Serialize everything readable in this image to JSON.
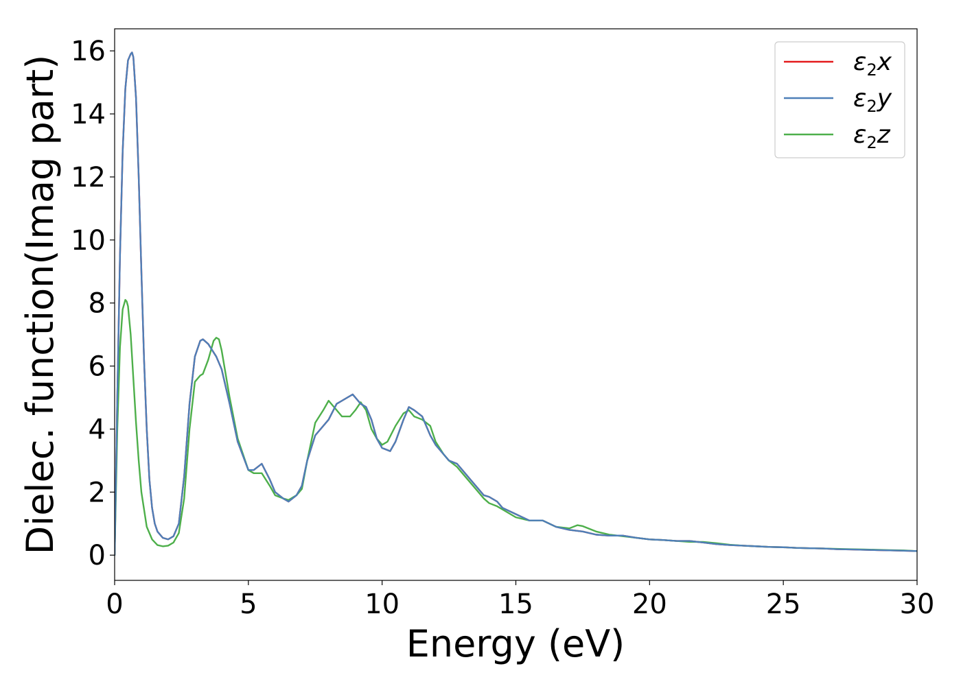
{
  "chart_data": {
    "type": "line",
    "title": "",
    "xlabel": "Energy (eV)",
    "ylabel": "Dielec. function(Imag part)",
    "xlim": [
      0,
      30
    ],
    "ylim": [
      -0.8,
      16.7
    ],
    "xticks": [
      0,
      5,
      10,
      15,
      20,
      25,
      30
    ],
    "yticks": [
      0,
      2,
      4,
      6,
      8,
      10,
      12,
      14,
      16
    ],
    "grid": false,
    "legend_position": "top-right",
    "series": [
      {
        "name": "ε2x",
        "legend_base": "ε",
        "legend_sub": "2",
        "legend_suffix": "x",
        "color": "#e41a1c",
        "x": [
          0,
          0.1,
          0.2,
          0.3,
          0.4,
          0.5,
          0.6,
          0.65,
          0.7,
          0.8,
          0.9,
          1.0,
          1.1,
          1.2,
          1.3,
          1.4,
          1.5,
          1.6,
          1.8,
          2.0,
          2.2,
          2.4,
          2.6,
          2.8,
          3.0,
          3.2,
          3.3,
          3.5,
          3.8,
          4.0,
          4.3,
          4.6,
          5.0,
          5.2,
          5.5,
          5.8,
          6.0,
          6.3,
          6.5,
          6.8,
          7.0,
          7.2,
          7.5,
          7.8,
          8.0,
          8.3,
          8.5,
          8.8,
          8.9,
          9.0,
          9.2,
          9.4,
          9.6,
          9.8,
          10.0,
          10.3,
          10.5,
          10.8,
          11.0,
          11.2,
          11.5,
          11.8,
          12.0,
          12.3,
          12.5,
          12.8,
          13.0,
          13.3,
          13.5,
          13.8,
          14.0,
          14.3,
          14.5,
          15.0,
          15.5,
          16.0,
          16.5,
          17.0,
          17.5,
          18.0,
          18.5,
          19.0,
          19.5,
          20.0,
          20.5,
          21.0,
          21.5,
          22.0,
          22.5,
          23.0,
          23.5,
          24.0,
          24.5,
          25.0,
          25.5,
          26.0,
          26.5,
          27.0,
          27.5,
          28.0,
          28.5,
          29.0,
          29.5,
          30.0
        ],
        "y": [
          0,
          5.0,
          9.5,
          12.8,
          14.8,
          15.7,
          15.9,
          15.95,
          15.8,
          14.5,
          12.0,
          9.0,
          6.2,
          4.0,
          2.4,
          1.5,
          1.0,
          0.75,
          0.55,
          0.5,
          0.6,
          1.0,
          2.5,
          4.8,
          6.3,
          6.8,
          6.85,
          6.7,
          6.3,
          5.9,
          4.8,
          3.6,
          2.7,
          2.7,
          2.9,
          2.4,
          2.0,
          1.8,
          1.7,
          1.9,
          2.2,
          3.0,
          3.8,
          4.1,
          4.3,
          4.8,
          4.9,
          5.05,
          5.1,
          5.0,
          4.8,
          4.7,
          4.3,
          3.7,
          3.4,
          3.3,
          3.6,
          4.3,
          4.7,
          4.6,
          4.4,
          3.8,
          3.5,
          3.2,
          3.0,
          2.9,
          2.7,
          2.4,
          2.2,
          1.9,
          1.85,
          1.7,
          1.5,
          1.3,
          1.1,
          1.1,
          0.9,
          0.8,
          0.75,
          0.65,
          0.62,
          0.62,
          0.55,
          0.5,
          0.48,
          0.45,
          0.45,
          0.4,
          0.35,
          0.32,
          0.3,
          0.28,
          0.26,
          0.25,
          0.23,
          0.22,
          0.21,
          0.19,
          0.18,
          0.17,
          0.16,
          0.15,
          0.14,
          0.13
        ]
      },
      {
        "name": "ε2y",
        "legend_base": "ε",
        "legend_sub": "2",
        "legend_suffix": "y",
        "color": "#4d7fb8",
        "x": [
          0,
          0.1,
          0.2,
          0.3,
          0.4,
          0.5,
          0.6,
          0.65,
          0.7,
          0.8,
          0.9,
          1.0,
          1.1,
          1.2,
          1.3,
          1.4,
          1.5,
          1.6,
          1.8,
          2.0,
          2.2,
          2.4,
          2.6,
          2.8,
          3.0,
          3.2,
          3.3,
          3.5,
          3.8,
          4.0,
          4.3,
          4.6,
          5.0,
          5.2,
          5.5,
          5.8,
          6.0,
          6.3,
          6.5,
          6.8,
          7.0,
          7.2,
          7.5,
          7.8,
          8.0,
          8.3,
          8.5,
          8.8,
          8.9,
          9.0,
          9.2,
          9.4,
          9.6,
          9.8,
          10.0,
          10.3,
          10.5,
          10.8,
          11.0,
          11.2,
          11.5,
          11.8,
          12.0,
          12.3,
          12.5,
          12.8,
          13.0,
          13.3,
          13.5,
          13.8,
          14.0,
          14.3,
          14.5,
          15.0,
          15.5,
          16.0,
          16.5,
          17.0,
          17.5,
          18.0,
          18.5,
          19.0,
          19.5,
          20.0,
          20.5,
          21.0,
          21.5,
          22.0,
          22.5,
          23.0,
          23.5,
          24.0,
          24.5,
          25.0,
          25.5,
          26.0,
          26.5,
          27.0,
          27.5,
          28.0,
          28.5,
          29.0,
          29.5,
          30.0
        ],
        "y": [
          0,
          5.0,
          9.5,
          12.8,
          14.8,
          15.7,
          15.9,
          15.95,
          15.8,
          14.5,
          12.0,
          9.0,
          6.2,
          4.0,
          2.4,
          1.5,
          1.0,
          0.75,
          0.55,
          0.5,
          0.6,
          1.0,
          2.5,
          4.8,
          6.3,
          6.8,
          6.85,
          6.7,
          6.3,
          5.9,
          4.8,
          3.6,
          2.7,
          2.7,
          2.9,
          2.4,
          2.0,
          1.8,
          1.7,
          1.9,
          2.2,
          3.0,
          3.8,
          4.1,
          4.3,
          4.8,
          4.9,
          5.05,
          5.1,
          5.0,
          4.8,
          4.7,
          4.3,
          3.7,
          3.4,
          3.3,
          3.6,
          4.3,
          4.7,
          4.6,
          4.4,
          3.8,
          3.5,
          3.2,
          3.0,
          2.9,
          2.7,
          2.4,
          2.2,
          1.9,
          1.85,
          1.7,
          1.5,
          1.3,
          1.1,
          1.1,
          0.9,
          0.8,
          0.75,
          0.65,
          0.62,
          0.62,
          0.55,
          0.5,
          0.48,
          0.45,
          0.45,
          0.4,
          0.35,
          0.32,
          0.3,
          0.28,
          0.26,
          0.25,
          0.23,
          0.22,
          0.21,
          0.19,
          0.18,
          0.17,
          0.16,
          0.15,
          0.14,
          0.13
        ]
      },
      {
        "name": "ε2z",
        "legend_base": "ε",
        "legend_sub": "2",
        "legend_suffix": "z",
        "color": "#4daf4a",
        "x": [
          0,
          0.1,
          0.2,
          0.3,
          0.4,
          0.45,
          0.5,
          0.6,
          0.7,
          0.8,
          0.9,
          1.0,
          1.2,
          1.4,
          1.6,
          1.8,
          2.0,
          2.2,
          2.4,
          2.6,
          2.8,
          3.0,
          3.2,
          3.3,
          3.5,
          3.7,
          3.8,
          3.9,
          4.0,
          4.3,
          4.6,
          5.0,
          5.2,
          5.5,
          5.8,
          6.0,
          6.3,
          6.5,
          6.8,
          7.0,
          7.2,
          7.5,
          7.8,
          8.0,
          8.3,
          8.5,
          8.8,
          9.0,
          9.2,
          9.4,
          9.6,
          9.8,
          10.0,
          10.2,
          10.5,
          10.8,
          11.0,
          11.2,
          11.5,
          11.8,
          12.0,
          12.3,
          12.5,
          12.8,
          13.0,
          13.3,
          13.5,
          13.8,
          14.0,
          14.3,
          14.5,
          15.0,
          15.5,
          16.0,
          16.5,
          17.0,
          17.3,
          17.5,
          18.0,
          18.5,
          19.0,
          19.5,
          20.0,
          20.5,
          21.0,
          21.5,
          22.0,
          22.5,
          23.0,
          23.5,
          24.0,
          24.5,
          25.0,
          25.5,
          26.0,
          26.5,
          27.0,
          27.5,
          28.0,
          28.5,
          29.0,
          29.5,
          30.0
        ],
        "y": [
          0,
          4.0,
          6.6,
          7.8,
          8.1,
          8.05,
          7.9,
          7.0,
          5.6,
          4.2,
          3.0,
          2.0,
          0.9,
          0.5,
          0.32,
          0.28,
          0.3,
          0.4,
          0.7,
          1.8,
          4.0,
          5.5,
          5.7,
          5.75,
          6.2,
          6.8,
          6.9,
          6.85,
          6.5,
          5.0,
          3.7,
          2.7,
          2.6,
          2.6,
          2.2,
          1.9,
          1.8,
          1.75,
          1.9,
          2.1,
          3.0,
          4.2,
          4.6,
          4.9,
          4.6,
          4.4,
          4.4,
          4.6,
          4.85,
          4.6,
          4.0,
          3.7,
          3.5,
          3.6,
          4.1,
          4.5,
          4.6,
          4.4,
          4.3,
          4.1,
          3.6,
          3.2,
          3.0,
          2.8,
          2.6,
          2.3,
          2.1,
          1.8,
          1.65,
          1.55,
          1.45,
          1.2,
          1.1,
          1.1,
          0.9,
          0.85,
          0.95,
          0.92,
          0.75,
          0.65,
          0.6,
          0.55,
          0.5,
          0.48,
          0.45,
          0.42,
          0.42,
          0.38,
          0.33,
          0.3,
          0.28,
          0.26,
          0.25,
          0.23,
          0.22,
          0.21,
          0.2,
          0.19,
          0.18,
          0.17,
          0.16,
          0.15,
          0.13
        ]
      }
    ]
  }
}
